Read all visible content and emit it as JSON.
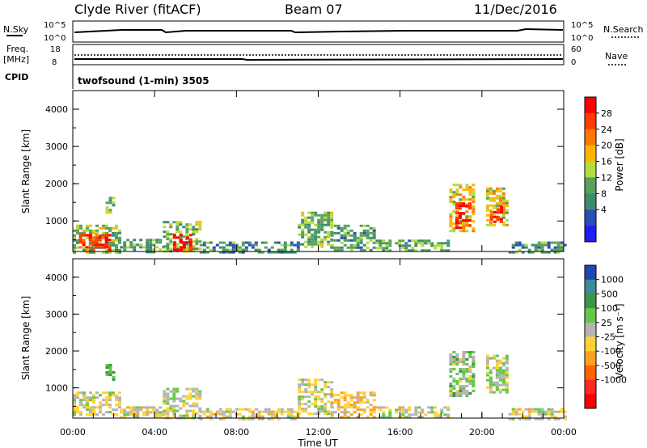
{
  "header": {
    "station": "Clyde River (fitACF)",
    "beam": "Beam 07",
    "date": "11/Dec/2016"
  },
  "noise_panel": {
    "left_label": "N.Sky",
    "right_label": "N.Search",
    "ticks_left": [
      "10^5",
      "10^0"
    ],
    "ticks_right": [
      "10^5",
      "10^0"
    ]
  },
  "freq_panel": {
    "left_label_1": "Freq.",
    "left_label_2": "[MHz]",
    "right_label": "Nave",
    "ticks_left": [
      "18",
      "8"
    ],
    "ticks_right": [
      "60",
      "0"
    ]
  },
  "cpid": {
    "label": "CPID",
    "value": "twofsound (1-min) 3505"
  },
  "time_axis": {
    "label": "Time UT",
    "ticks": [
      "00:00",
      "04:00",
      "08:00",
      "12:00",
      "16:00",
      "20:00",
      "00:00"
    ]
  },
  "colors": {
    "power_scale": [
      "#1e1ef0",
      "#2850b4",
      "#3c8c6e",
      "#5aa05a",
      "#b4dc3c",
      "#ffb400",
      "#ff7800",
      "#ff3c00",
      "#ff0000"
    ],
    "velocity_scale": [
      "#1e46b4",
      "#3c8c96",
      "#3c9646",
      "#64c846",
      "#b4b4b4",
      "#ffd232",
      "#ffa01e",
      "#ff6400",
      "#ff2828",
      "#ff0000"
    ]
  },
  "chart_data": [
    {
      "type": "heatmap",
      "panel": "power",
      "ylabel": "Slant Range [km]",
      "xlabel": "",
      "xlim": [
        0,
        24
      ],
      "ylim": [
        180,
        4500
      ],
      "yticks": [
        "1000",
        "2000",
        "3000",
        "4000"
      ],
      "colorbar": {
        "label": "Power [dB]",
        "ticks": [
          "28",
          "24",
          "20",
          "16",
          "12",
          "8",
          "4"
        ],
        "range": [
          0,
          32
        ]
      },
      "regions": [
        {
          "t0": 0.0,
          "t1": 2.3,
          "r0": 180,
          "r1": 900,
          "v": 14
        },
        {
          "t0": 0.3,
          "t1": 1.8,
          "r0": 200,
          "r1": 650,
          "v": 28
        },
        {
          "t0": 1.6,
          "t1": 2.0,
          "r0": 1200,
          "r1": 1650,
          "v": 14
        },
        {
          "t0": 2.3,
          "t1": 4.4,
          "r0": 180,
          "r1": 520,
          "v": 12
        },
        {
          "t0": 4.4,
          "t1": 6.2,
          "r0": 180,
          "r1": 1000,
          "v": 14
        },
        {
          "t0": 4.9,
          "t1": 5.8,
          "r0": 200,
          "r1": 650,
          "v": 29
        },
        {
          "t0": 6.2,
          "t1": 11.0,
          "r0": 180,
          "r1": 450,
          "v": 10
        },
        {
          "t0": 11.0,
          "t1": 12.6,
          "r0": 300,
          "r1": 1250,
          "v": 13
        },
        {
          "t0": 12.6,
          "t1": 14.8,
          "r0": 200,
          "r1": 900,
          "v": 11
        },
        {
          "t0": 14.8,
          "t1": 18.3,
          "r0": 180,
          "r1": 500,
          "v": 12
        },
        {
          "t0": 18.4,
          "t1": 19.6,
          "r0": 700,
          "r1": 2000,
          "v": 18
        },
        {
          "t0": 18.7,
          "t1": 19.4,
          "r0": 800,
          "r1": 1500,
          "v": 29
        },
        {
          "t0": 20.2,
          "t1": 21.3,
          "r0": 900,
          "r1": 1900,
          "v": 18
        },
        {
          "t0": 20.4,
          "t1": 20.9,
          "r0": 1000,
          "r1": 1400,
          "v": 29
        },
        {
          "t0": 21.3,
          "t1": 24.0,
          "r0": 180,
          "r1": 450,
          "v": 10
        }
      ]
    },
    {
      "type": "heatmap",
      "panel": "velocity",
      "ylabel": "Slant Range [km]",
      "xlabel": "Time UT",
      "xlim": [
        0,
        24
      ],
      "ylim": [
        180,
        4500
      ],
      "yticks": [
        "1000",
        "2000",
        "3000",
        "4000"
      ],
      "colorbar": {
        "label": "Velocity [m s⁻¹]",
        "ticks": [
          "1000",
          "500",
          "100",
          "25",
          "-25",
          "-100",
          "-500",
          "-1000"
        ],
        "range": [
          -1000,
          1000
        ]
      },
      "regions": [
        {
          "t0": 0.0,
          "t1": 2.3,
          "r0": 300,
          "r1": 900,
          "v": 60
        },
        {
          "t0": 1.6,
          "t1": 2.0,
          "r0": 1200,
          "r1": 1650,
          "v": 400
        },
        {
          "t0": 2.3,
          "t1": 4.4,
          "r0": 180,
          "r1": 500,
          "v": 0
        },
        {
          "t0": 4.4,
          "t1": 6.2,
          "r0": 200,
          "r1": 1000,
          "v": 60
        },
        {
          "t0": 6.2,
          "t1": 11.0,
          "r0": 180,
          "r1": 450,
          "v": 0
        },
        {
          "t0": 11.0,
          "t1": 12.6,
          "r0": 300,
          "r1": 1250,
          "v": 50
        },
        {
          "t0": 12.6,
          "t1": 14.8,
          "r0": 200,
          "r1": 900,
          "v": -150
        },
        {
          "t0": 14.8,
          "t1": 18.3,
          "r0": 180,
          "r1": 500,
          "v": 30
        },
        {
          "t0": 18.4,
          "t1": 19.6,
          "r0": 800,
          "r1": 2000,
          "v": 200
        },
        {
          "t0": 20.2,
          "t1": 21.3,
          "r0": 900,
          "r1": 1900,
          "v": 150
        },
        {
          "t0": 21.3,
          "t1": 24.0,
          "r0": 180,
          "r1": 450,
          "v": 0
        }
      ]
    }
  ]
}
